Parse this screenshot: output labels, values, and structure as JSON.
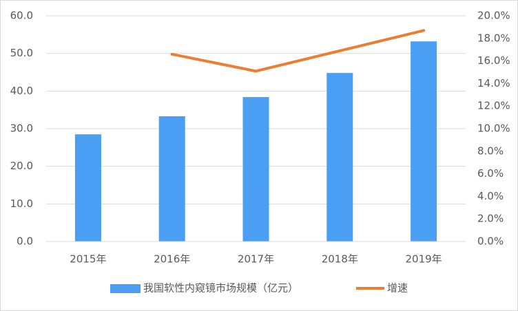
{
  "chart_data": {
    "type": "bar-line",
    "categories": [
      "2015年",
      "2016年",
      "2017年",
      "2018年",
      "2019年"
    ],
    "series": [
      {
        "name": "我国软性内窥镜市场规模（亿元）",
        "type": "bar",
        "color": "#4a9ff5",
        "values": [
          28.5,
          33.3,
          38.4,
          44.8,
          53.2
        ]
      },
      {
        "name": "增速",
        "type": "line",
        "axis": "y2",
        "color": "#ed7d31",
        "values": [
          null,
          16.6,
          15.1,
          16.9,
          18.7
        ]
      }
    ],
    "ylim": [
      0,
      60
    ],
    "yticks": [
      {
        "value": 0,
        "label": "0.0"
      },
      {
        "value": 10,
        "label": "10.0"
      },
      {
        "value": 20,
        "label": "20.0"
      },
      {
        "value": 30,
        "label": "30.0"
      },
      {
        "value": 40,
        "label": "40.0"
      },
      {
        "value": 50,
        "label": "50.0"
      },
      {
        "value": 60,
        "label": "60.0"
      }
    ],
    "y2lim": [
      0,
      20
    ],
    "y2ticks": [
      {
        "value": 0,
        "label": "0.0%"
      },
      {
        "value": 2,
        "label": "2.0%"
      },
      {
        "value": 4,
        "label": "4.0%"
      },
      {
        "value": 6,
        "label": "6.0%"
      },
      {
        "value": 8,
        "label": "8.0%"
      },
      {
        "value": 10,
        "label": "10.0%"
      },
      {
        "value": 12,
        "label": "12.0%"
      },
      {
        "value": 14,
        "label": "14.0%"
      },
      {
        "value": 16,
        "label": "16.0%"
      },
      {
        "value": 18,
        "label": "18.0%"
      },
      {
        "value": 20,
        "label": "20.0%"
      }
    ],
    "grid": true,
    "legend": "bottom"
  }
}
